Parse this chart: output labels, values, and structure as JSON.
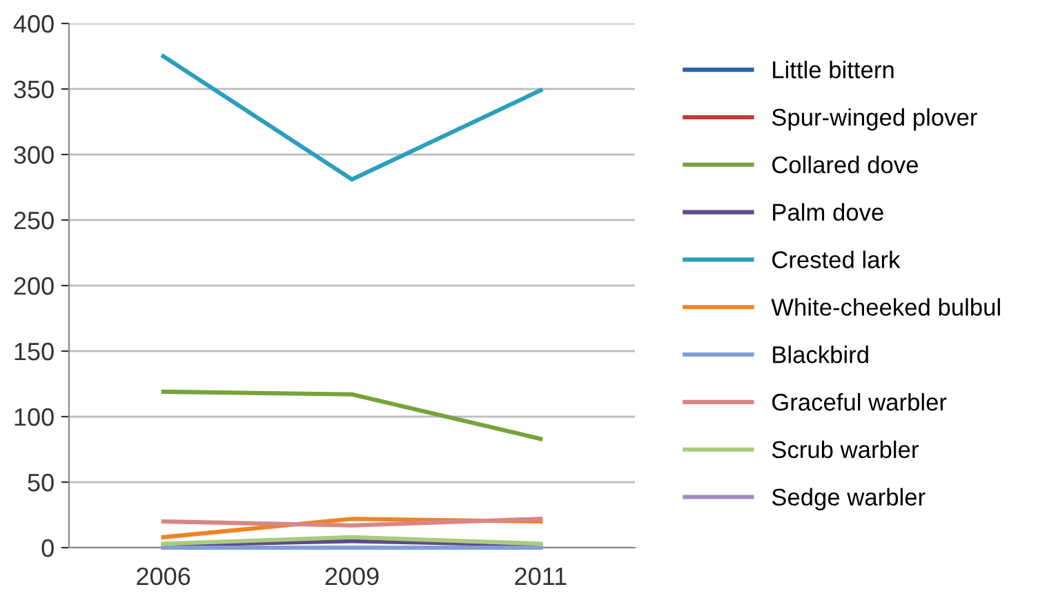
{
  "chart_data": {
    "type": "line",
    "categories": [
      "2006",
      "2009",
      "2011"
    ],
    "series": [
      {
        "name": "Little bittern",
        "color": "#2e63a8",
        "values": [
          null,
          null,
          null
        ]
      },
      {
        "name": "Spur-winged plover",
        "color": "#be3b38",
        "values": [
          null,
          null,
          null
        ]
      },
      {
        "name": "Collared dove",
        "color": "#77a33a",
        "values": [
          119,
          117,
          83
        ]
      },
      {
        "name": "Palm dove",
        "color": "#634a8c",
        "values": [
          2,
          5,
          2
        ]
      },
      {
        "name": "Crested lark",
        "color": "#2c9fbd",
        "values": [
          375,
          281,
          349
        ]
      },
      {
        "name": "White-cheeked bulbul",
        "color": "#ee8424",
        "values": [
          8,
          22,
          20
        ]
      },
      {
        "name": "Blackbird",
        "color": "#7f9fd5",
        "values": [
          0,
          0,
          0
        ]
      },
      {
        "name": "Graceful warbler",
        "color": "#d98686",
        "values": [
          20,
          17,
          22
        ]
      },
      {
        "name": "Scrub warbler",
        "color": "#a9cc7e",
        "values": [
          3,
          8,
          3
        ]
      },
      {
        "name": "Sedge warbler",
        "color": "#9e8ec4",
        "values": [
          null,
          null,
          null
        ]
      }
    ],
    "ylim": [
      0,
      400
    ],
    "yticks": [
      0,
      50,
      100,
      150,
      200,
      250,
      300,
      350,
      400
    ],
    "grid": "y",
    "legend": "right",
    "marker": "none",
    "line_style": "solid"
  }
}
